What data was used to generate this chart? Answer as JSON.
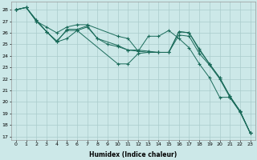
{
  "xlabel": "Humidex (Indice chaleur)",
  "bg_color": "#cce8e8",
  "grid_color": "#aacccc",
  "line_color": "#1a6b5a",
  "xlim": [
    -0.5,
    23.5
  ],
  "ylim": [
    16.7,
    28.7
  ],
  "yticks": [
    17,
    18,
    19,
    20,
    21,
    22,
    23,
    24,
    25,
    26,
    27,
    28
  ],
  "xticks": [
    0,
    1,
    2,
    3,
    4,
    5,
    6,
    7,
    8,
    9,
    10,
    11,
    12,
    13,
    14,
    15,
    16,
    17,
    18,
    19,
    20,
    21,
    22,
    23
  ],
  "series": [
    {
      "x": [
        0,
        1,
        2,
        3,
        4,
        5,
        6,
        7,
        8,
        9,
        10,
        11,
        12,
        13,
        14,
        15,
        16,
        17,
        18,
        19,
        20,
        21,
        22,
        23
      ],
      "y": [
        28.0,
        28.2,
        27.1,
        26.1,
        25.2,
        25.5,
        26.2,
        26.5,
        25.5,
        25.0,
        24.8,
        24.5,
        24.4,
        24.3,
        24.3,
        24.3,
        25.8,
        25.7,
        24.2,
        23.2,
        22.0,
        20.4,
        19.1,
        17.3
      ]
    },
    {
      "x": [
        0,
        1,
        2,
        3,
        4,
        5,
        6,
        7,
        10,
        11,
        12,
        13,
        14,
        15,
        16,
        17,
        18,
        19,
        20,
        21,
        22,
        23
      ],
      "y": [
        28.0,
        28.2,
        27.0,
        26.5,
        26.0,
        26.5,
        26.7,
        26.7,
        25.7,
        25.5,
        24.4,
        25.7,
        25.7,
        26.2,
        25.5,
        24.7,
        23.3,
        22.1,
        20.4,
        20.4,
        19.2,
        17.3
      ]
    },
    {
      "x": [
        0,
        1,
        2,
        3,
        4,
        5,
        6,
        7,
        8,
        10,
        11,
        12,
        13,
        14,
        15,
        16,
        17,
        18,
        19,
        20,
        21,
        22,
        23
      ],
      "y": [
        28.0,
        28.2,
        27.1,
        26.1,
        25.2,
        26.3,
        26.3,
        26.6,
        25.5,
        24.9,
        24.5,
        24.5,
        24.4,
        24.3,
        24.3,
        26.1,
        26.0,
        24.6,
        23.3,
        22.1,
        20.5,
        19.2,
        17.3
      ]
    },
    {
      "x": [
        0,
        1,
        2,
        3,
        4,
        5,
        6,
        10,
        11,
        12,
        13,
        14,
        15,
        16,
        17,
        18,
        19,
        20,
        21,
        22,
        23
      ],
      "y": [
        28.0,
        28.2,
        27.0,
        26.1,
        25.3,
        26.2,
        26.2,
        23.3,
        23.3,
        24.2,
        24.3,
        24.3,
        24.3,
        26.1,
        26.0,
        24.5,
        23.3,
        22.1,
        20.5,
        19.2,
        17.3
      ]
    }
  ]
}
